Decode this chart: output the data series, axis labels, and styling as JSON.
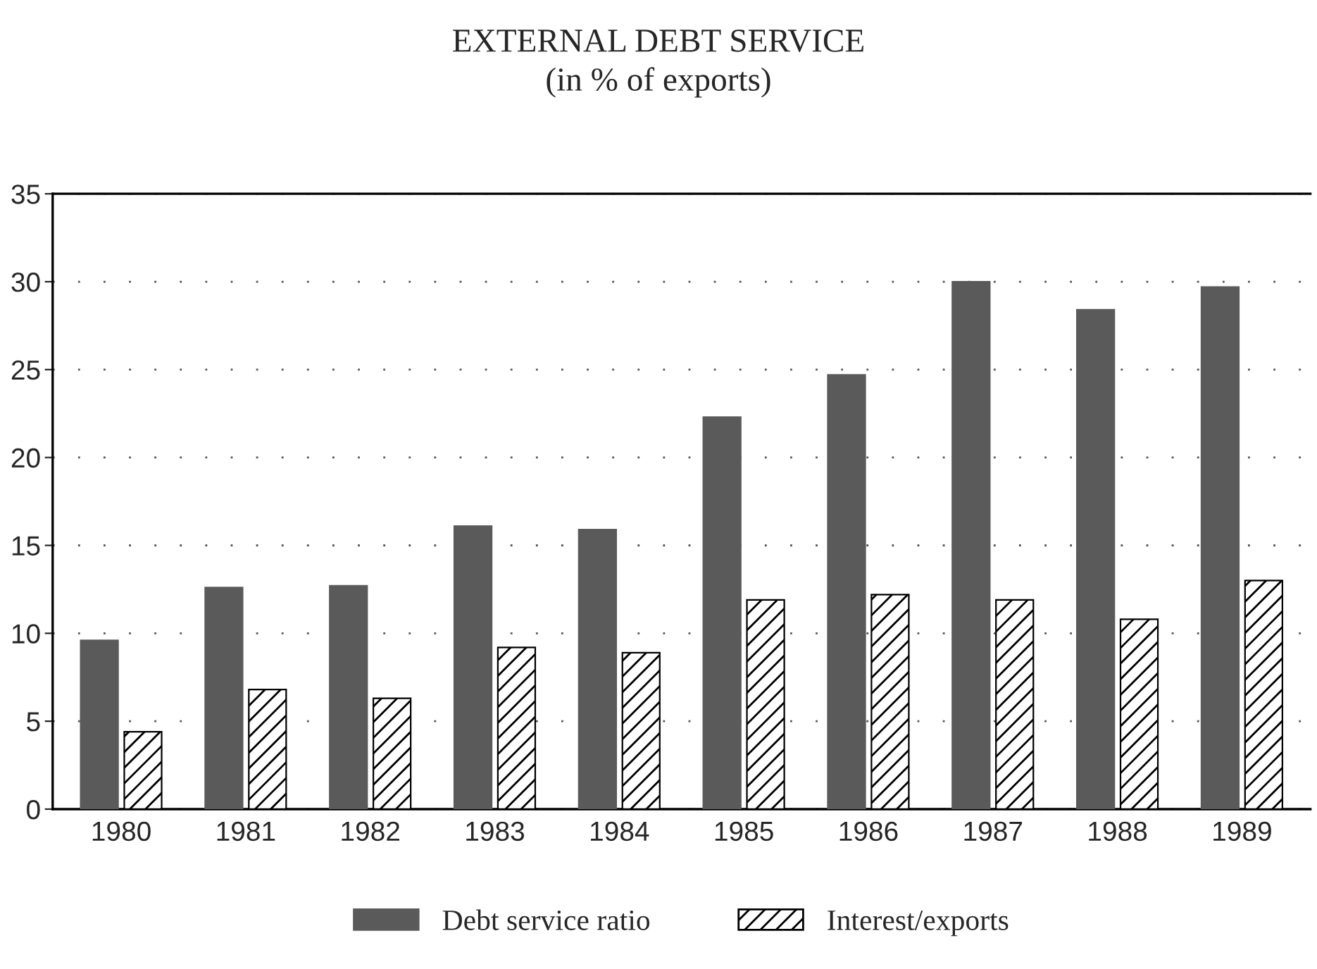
{
  "chart_data": {
    "type": "bar",
    "title": "EXTERNAL DEBT SERVICE",
    "subtitle": "(in % of exports)",
    "categories": [
      "1980",
      "1981",
      "1982",
      "1983",
      "1984",
      "1985",
      "1986",
      "1987",
      "1988",
      "1989"
    ],
    "series": [
      {
        "name": "Debt service ratio",
        "color": "#5a5a5a",
        "values": [
          9.6,
          12.6,
          12.7,
          16.1,
          15.9,
          22.3,
          24.7,
          30.0,
          28.4,
          29.7
        ]
      },
      {
        "name": "Interest/exports",
        "color": "#000000",
        "values": [
          4.4,
          6.8,
          6.3,
          9.2,
          8.9,
          11.9,
          12.2,
          11.9,
          10.8,
          13.0
        ]
      }
    ],
    "ylim": [
      0,
      35
    ],
    "yticks": [
      0,
      5,
      10,
      15,
      20,
      25,
      30,
      35
    ],
    "grid": "y",
    "legend": "bottom"
  }
}
